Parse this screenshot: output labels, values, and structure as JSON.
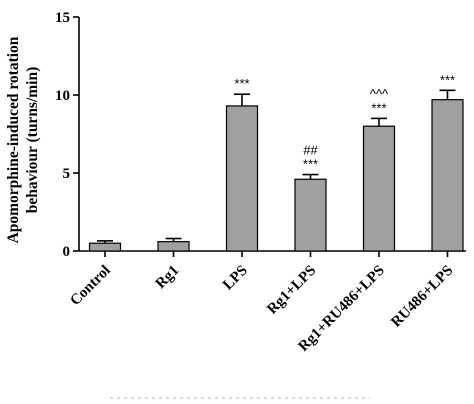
{
  "chart_data": {
    "type": "bar",
    "title": "",
    "xlabel": "",
    "ylabel_line1": "Apomorphine-induced rotation",
    "ylabel_line2": "behaviour (turns/min)",
    "ylim": [
      0,
      15
    ],
    "yticks": [
      "0",
      "5",
      "10",
      "15"
    ],
    "ytick_values": [
      0,
      5,
      10,
      15
    ],
    "grid": false,
    "categories": [
      "Control",
      "Rg1",
      "LPS",
      "Rg1+LPS",
      "Rg1+RU486+LPS",
      "RU486+LPS"
    ],
    "values": [
      0.5,
      0.6,
      9.3,
      4.6,
      8.0,
      9.7
    ],
    "errors": [
      0.15,
      0.2,
      0.75,
      0.3,
      0.5,
      0.6
    ],
    "significance": [
      [],
      [],
      [
        "***"
      ],
      [
        "##",
        "***"
      ],
      [
        "^^^",
        "***"
      ],
      [
        "***"
      ]
    ],
    "bar_color": "#a0a0a0"
  }
}
